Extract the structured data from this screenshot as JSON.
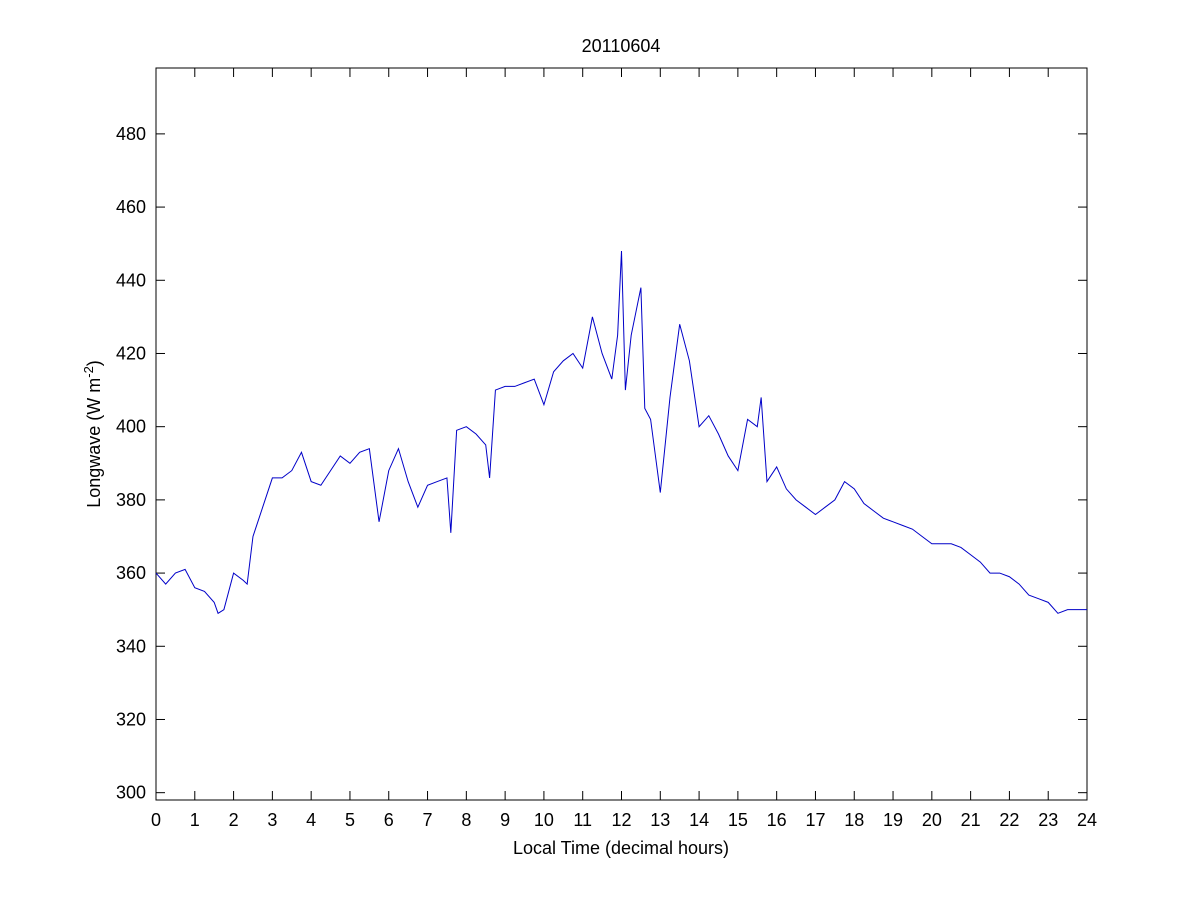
{
  "chart_data": {
    "type": "line",
    "title": "20110604",
    "xlabel": "Local Time (decimal hours)",
    "ylabel": {
      "text": "Longwave (W m",
      "superscript": "-2",
      "suffix": ")"
    },
    "xlim": [
      0,
      24
    ],
    "ylim": [
      298,
      498
    ],
    "xticks": [
      0,
      1,
      2,
      3,
      4,
      5,
      6,
      7,
      8,
      9,
      10,
      11,
      12,
      13,
      14,
      15,
      16,
      17,
      18,
      19,
      20,
      21,
      22,
      23,
      24
    ],
    "yticks": [
      300,
      320,
      340,
      360,
      380,
      400,
      420,
      440,
      460,
      480
    ],
    "grid": false,
    "x": [
      0,
      0.25,
      0.5,
      0.75,
      1,
      1.25,
      1.5,
      1.6,
      1.75,
      2,
      2.25,
      2.35,
      2.5,
      2.75,
      3,
      3.25,
      3.5,
      3.75,
      4,
      4.25,
      4.5,
      4.75,
      5,
      5.25,
      5.5,
      5.75,
      6,
      6.25,
      6.5,
      6.75,
      7,
      7.25,
      7.5,
      7.6,
      7.75,
      8,
      8.25,
      8.5,
      8.6,
      8.75,
      9,
      9.25,
      9.5,
      9.75,
      10,
      10.25,
      10.5,
      10.75,
      11,
      11.25,
      11.5,
      11.75,
      11.9,
      12,
      12.1,
      12.25,
      12.5,
      12.6,
      12.75,
      13,
      13.25,
      13.5,
      13.75,
      14,
      14.25,
      14.5,
      14.75,
      15,
      15.25,
      15.5,
      15.6,
      15.75,
      16,
      16.25,
      16.5,
      16.75,
      17,
      17.25,
      17.5,
      17.75,
      18,
      18.25,
      18.5,
      18.75,
      19,
      19.25,
      19.5,
      19.75,
      20,
      20.25,
      20.5,
      20.75,
      21,
      21.25,
      21.5,
      21.75,
      22,
      22.25,
      22.5,
      22.75,
      23,
      23.25,
      23.5,
      23.75,
      24
    ],
    "series": [
      {
        "name": "Longwave",
        "color": "#0000c8",
        "values": [
          360,
          357,
          360,
          361,
          356,
          355,
          352,
          349,
          350,
          360,
          358,
          357,
          370,
          378,
          386,
          386,
          388,
          393,
          385,
          384,
          388,
          392,
          390,
          393,
          394,
          374,
          388,
          394,
          385,
          378,
          384,
          385,
          386,
          371,
          399,
          400,
          398,
          395,
          386,
          410,
          411,
          411,
          412,
          413,
          406,
          415,
          418,
          420,
          416,
          430,
          420,
          413,
          425,
          448,
          410,
          425,
          438,
          405,
          402,
          382,
          408,
          428,
          418,
          400,
          403,
          398,
          392,
          388,
          402,
          400,
          408,
          385,
          389,
          383,
          380,
          378,
          376,
          378,
          380,
          385,
          383,
          379,
          377,
          375,
          374,
          373,
          372,
          370,
          368,
          368,
          368,
          367,
          365,
          363,
          360,
          360,
          359,
          357,
          354,
          353,
          352,
          349,
          350,
          350,
          350
        ]
      }
    ]
  }
}
